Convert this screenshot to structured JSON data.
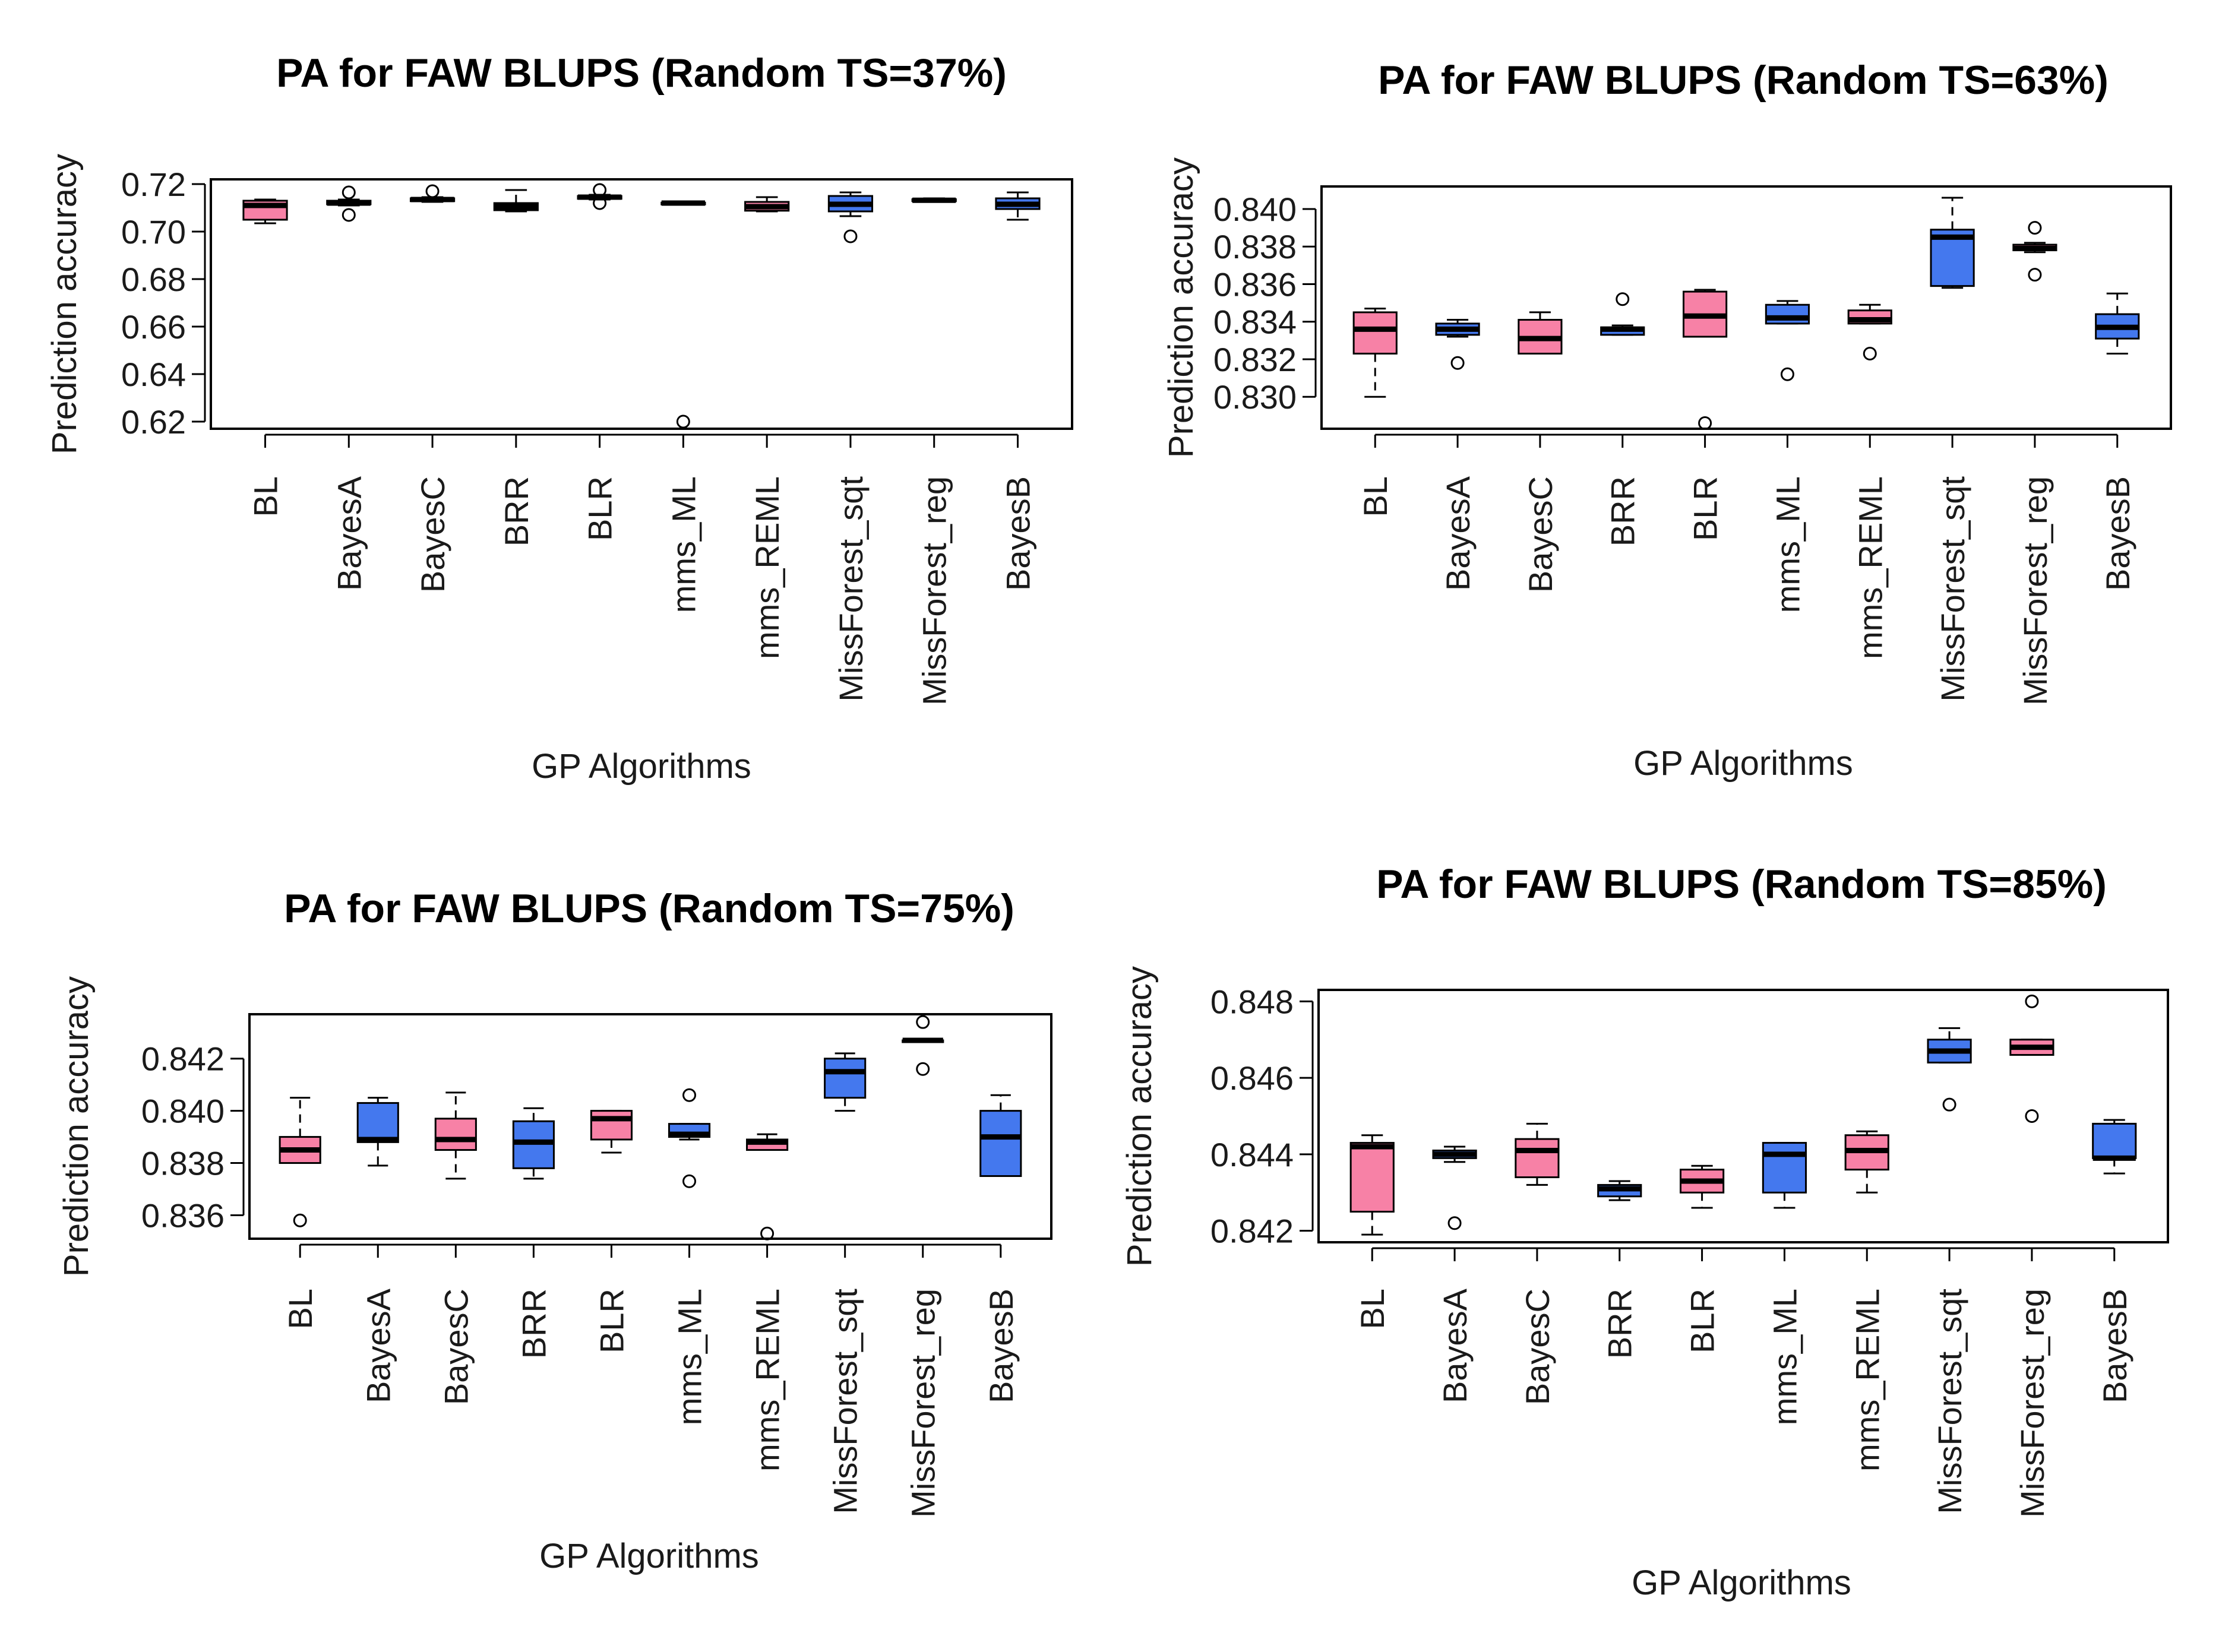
{
  "colors": {
    "pink": "#f781a6",
    "blue": "#4478ee",
    "line": "#000000"
  },
  "chart_data": [
    {
      "type": "boxplot",
      "title": "PA for FAW BLUPS (Random TS=37%)",
      "xlabel": "GP Algorithms",
      "ylabel": "Prediction accuracy",
      "ylim": [
        0.617,
        0.722
      ],
      "yticks": [
        0.62,
        0.64,
        0.66,
        0.68,
        0.7,
        0.72
      ],
      "ytick_labels": [
        "0.62",
        "0.64",
        "0.66",
        "0.68",
        "0.70",
        "0.72"
      ],
      "categories": [
        "BL",
        "BayesA",
        "BayesC",
        "BRR",
        "BLR",
        "mms_ML",
        "mms_REML",
        "MissForest_sqt",
        "MissForest_reg",
        "BayesB"
      ],
      "box_colors": [
        "pink",
        "blue",
        "pink",
        "blue",
        "pink",
        "blue",
        "pink",
        "blue",
        "pink",
        "blue"
      ],
      "boxes": [
        {
          "wlo": 0.7035,
          "q1": 0.705,
          "med": 0.711,
          "q3": 0.713,
          "whi": 0.7135,
          "out": []
        },
        {
          "wlo": 0.711,
          "q1": 0.7115,
          "med": 0.712,
          "q3": 0.713,
          "whi": 0.7135,
          "out": [
            0.7165,
            0.707
          ]
        },
        {
          "wlo": 0.7125,
          "q1": 0.7128,
          "med": 0.7135,
          "q3": 0.714,
          "whi": 0.7145,
          "out": [
            0.717
          ]
        },
        {
          "wlo": 0.7085,
          "q1": 0.709,
          "med": 0.7105,
          "q3": 0.712,
          "whi": 0.7175,
          "out": []
        },
        {
          "wlo": 0.7135,
          "q1": 0.7138,
          "med": 0.7145,
          "q3": 0.715,
          "whi": 0.7155,
          "out": [
            0.7175,
            0.712
          ]
        },
        {
          "wlo": 0.7118,
          "q1": 0.7118,
          "med": 0.712,
          "q3": 0.7122,
          "whi": 0.7125,
          "out": [
            0.62
          ]
        },
        {
          "wlo": 0.7085,
          "q1": 0.7088,
          "med": 0.7105,
          "q3": 0.7125,
          "whi": 0.7145,
          "out": []
        },
        {
          "wlo": 0.7065,
          "q1": 0.7085,
          "med": 0.7115,
          "q3": 0.715,
          "whi": 0.7165,
          "out": [
            0.698
          ]
        },
        {
          "wlo": 0.7125,
          "q1": 0.7128,
          "med": 0.7132,
          "q3": 0.7136,
          "whi": 0.714,
          "out": []
        },
        {
          "wlo": 0.705,
          "q1": 0.7095,
          "med": 0.7115,
          "q3": 0.714,
          "whi": 0.7165,
          "out": []
        }
      ]
    },
    {
      "type": "boxplot",
      "title": "PA for FAW BLUPS (Random TS=63%)",
      "xlabel": "GP Algorithms",
      "ylabel": "Prediction accuracy",
      "ylim": [
        0.8283,
        0.8412
      ],
      "yticks": [
        0.83,
        0.832,
        0.834,
        0.836,
        0.838,
        0.84
      ],
      "ytick_labels": [
        "0.830",
        "0.832",
        "0.834",
        "0.836",
        "0.838",
        "0.840"
      ],
      "categories": [
        "BL",
        "BayesA",
        "BayesC",
        "BRR",
        "BLR",
        "mms_ML",
        "mms_REML",
        "MissForest_sqt",
        "MissForest_reg",
        "BayesB"
      ],
      "box_colors": [
        "pink",
        "blue",
        "pink",
        "blue",
        "pink",
        "blue",
        "pink",
        "blue",
        "pink",
        "blue"
      ],
      "boxes": [
        {
          "wlo": 0.83,
          "q1": 0.8323,
          "med": 0.8336,
          "q3": 0.8345,
          "whi": 0.8347,
          "out": []
        },
        {
          "wlo": 0.8332,
          "q1": 0.8333,
          "med": 0.8336,
          "q3": 0.8339,
          "whi": 0.8341,
          "out": [
            0.8318
          ]
        },
        {
          "wlo": 0.8323,
          "q1": 0.8323,
          "med": 0.8331,
          "q3": 0.8341,
          "whi": 0.8345,
          "out": []
        },
        {
          "wlo": 0.8333,
          "q1": 0.8333,
          "med": 0.8336,
          "q3": 0.8337,
          "whi": 0.8338,
          "out": [
            0.8352
          ]
        },
        {
          "wlo": 0.8332,
          "q1": 0.8332,
          "med": 0.8343,
          "q3": 0.8356,
          "whi": 0.8357,
          "out": [
            0.8286
          ]
        },
        {
          "wlo": 0.8339,
          "q1": 0.8339,
          "med": 0.8342,
          "q3": 0.8349,
          "whi": 0.8351,
          "out": [
            0.8312
          ]
        },
        {
          "wlo": 0.8339,
          "q1": 0.8339,
          "med": 0.8341,
          "q3": 0.8346,
          "whi": 0.8349,
          "out": [
            0.8323
          ]
        },
        {
          "wlo": 0.8358,
          "q1": 0.8359,
          "med": 0.8385,
          "q3": 0.8389,
          "whi": 0.8406,
          "out": []
        },
        {
          "wlo": 0.8377,
          "q1": 0.8378,
          "med": 0.8379,
          "q3": 0.8381,
          "whi": 0.8382,
          "out": [
            0.839,
            0.8365
          ]
        },
        {
          "wlo": 0.8323,
          "q1": 0.8331,
          "med": 0.8337,
          "q3": 0.8344,
          "whi": 0.8355,
          "out": []
        }
      ]
    },
    {
      "type": "boxplot",
      "title": "PA for FAW BLUPS (Random TS=75%)",
      "xlabel": "GP Algorithms",
      "ylabel": "Prediction accuracy",
      "ylim": [
        0.8351,
        0.8437
      ],
      "yticks": [
        0.836,
        0.838,
        0.84,
        0.842
      ],
      "ytick_labels": [
        "0.836",
        "0.838",
        "0.840",
        "0.842"
      ],
      "categories": [
        "BL",
        "BayesA",
        "BayesC",
        "BRR",
        "BLR",
        "mms_ML",
        "mms_REML",
        "MissForest_sqt",
        "MissForest_reg",
        "BayesB"
      ],
      "box_colors": [
        "pink",
        "blue",
        "pink",
        "blue",
        "pink",
        "blue",
        "pink",
        "blue",
        "pink",
        "blue"
      ],
      "boxes": [
        {
          "wlo": 0.838,
          "q1": 0.838,
          "med": 0.8385,
          "q3": 0.839,
          "whi": 0.8405,
          "out": [
            0.8358
          ]
        },
        {
          "wlo": 0.8379,
          "q1": 0.8388,
          "med": 0.8389,
          "q3": 0.8403,
          "whi": 0.8405,
          "out": []
        },
        {
          "wlo": 0.8374,
          "q1": 0.8385,
          "med": 0.8389,
          "q3": 0.8397,
          "whi": 0.8407,
          "out": []
        },
        {
          "wlo": 0.8374,
          "q1": 0.8378,
          "med": 0.8388,
          "q3": 0.8396,
          "whi": 0.8401,
          "out": []
        },
        {
          "wlo": 0.8384,
          "q1": 0.8389,
          "med": 0.8397,
          "q3": 0.84,
          "whi": 0.84,
          "out": []
        },
        {
          "wlo": 0.8389,
          "q1": 0.839,
          "med": 0.8391,
          "q3": 0.8395,
          "whi": 0.8395,
          "out": [
            0.8406,
            0.8373
          ]
        },
        {
          "wlo": 0.8385,
          "q1": 0.8385,
          "med": 0.8388,
          "q3": 0.8389,
          "whi": 0.8391,
          "out": [
            0.8353
          ]
        },
        {
          "wlo": 0.84,
          "q1": 0.8405,
          "med": 0.8415,
          "q3": 0.842,
          "whi": 0.8422,
          "out": []
        },
        {
          "wlo": 0.8427,
          "q1": 0.8427,
          "med": 0.8427,
          "q3": 0.8427,
          "whi": 0.8427,
          "out": [
            0.8434,
            0.8416
          ]
        },
        {
          "wlo": 0.8375,
          "q1": 0.8375,
          "med": 0.839,
          "q3": 0.84,
          "whi": 0.8406,
          "out": []
        }
      ]
    },
    {
      "type": "boxplot",
      "title": "PA for FAW BLUPS (Random TS=85%)",
      "xlabel": "GP Algorithms",
      "ylabel": "Prediction accuracy",
      "ylim": [
        0.8417,
        0.8483
      ],
      "yticks": [
        0.842,
        0.844,
        0.846,
        0.848
      ],
      "ytick_labels": [
        "0.842",
        "0.844",
        "0.846",
        "0.848"
      ],
      "categories": [
        "BL",
        "BayesA",
        "BayesC",
        "BRR",
        "BLR",
        "mms_ML",
        "mms_REML",
        "MissForest_sqt",
        "MissForest_reg",
        "BayesB"
      ],
      "box_colors": [
        "pink",
        "blue",
        "pink",
        "blue",
        "pink",
        "blue",
        "pink",
        "blue",
        "pink",
        "blue"
      ],
      "boxes": [
        {
          "wlo": 0.8419,
          "q1": 0.8425,
          "med": 0.8442,
          "q3": 0.8443,
          "whi": 0.8445,
          "out": []
        },
        {
          "wlo": 0.8438,
          "q1": 0.8439,
          "med": 0.844,
          "q3": 0.8441,
          "whi": 0.8442,
          "out": [
            0.8422
          ]
        },
        {
          "wlo": 0.8432,
          "q1": 0.8434,
          "med": 0.8441,
          "q3": 0.8444,
          "whi": 0.8448,
          "out": []
        },
        {
          "wlo": 0.8428,
          "q1": 0.8429,
          "med": 0.8431,
          "q3": 0.8432,
          "whi": 0.8433,
          "out": []
        },
        {
          "wlo": 0.8426,
          "q1": 0.843,
          "med": 0.8433,
          "q3": 0.8436,
          "whi": 0.8437,
          "out": []
        },
        {
          "wlo": 0.8426,
          "q1": 0.843,
          "med": 0.844,
          "q3": 0.8443,
          "whi": 0.8443,
          "out": []
        },
        {
          "wlo": 0.843,
          "q1": 0.8436,
          "med": 0.8441,
          "q3": 0.8445,
          "whi": 0.8446,
          "out": []
        },
        {
          "wlo": 0.8464,
          "q1": 0.8464,
          "med": 0.8467,
          "q3": 0.847,
          "whi": 0.8473,
          "out": [
            0.8453
          ]
        },
        {
          "wlo": 0.8466,
          "q1": 0.8466,
          "med": 0.8468,
          "q3": 0.847,
          "whi": 0.847,
          "out": [
            0.848,
            0.845
          ]
        },
        {
          "wlo": 0.8435,
          "q1": 0.8439,
          "med": 0.8439,
          "q3": 0.8448,
          "whi": 0.8449,
          "out": []
        }
      ]
    }
  ]
}
